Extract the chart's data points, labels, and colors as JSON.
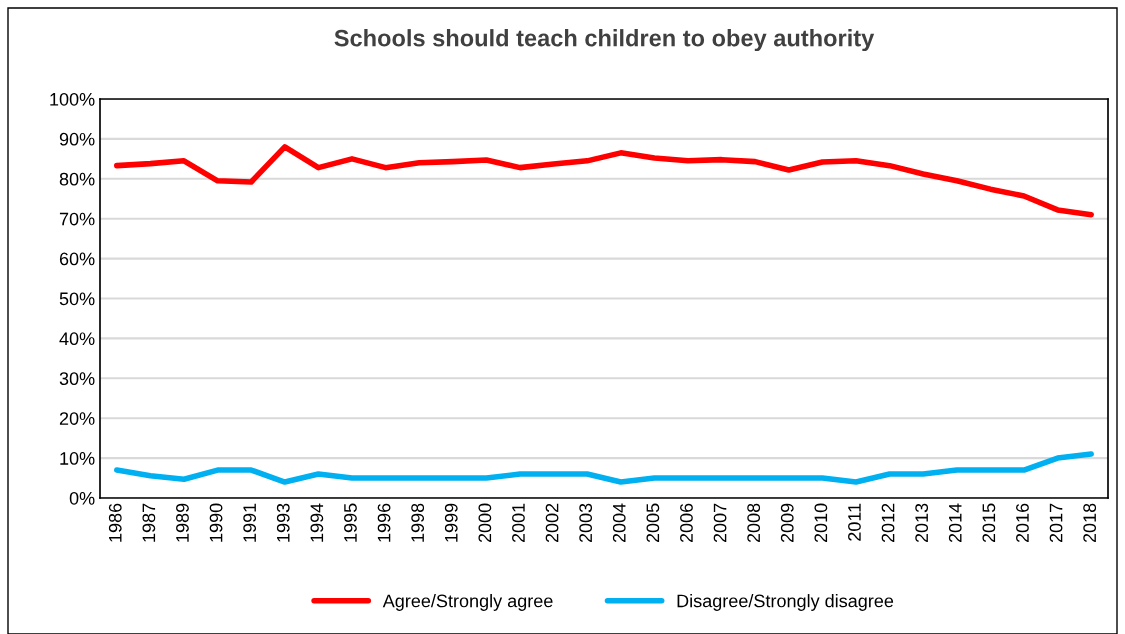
{
  "chart_data": {
    "type": "line",
    "title": "Schools should teach children to obey authority",
    "categories": [
      "1986",
      "1987",
      "1989",
      "1990",
      "1991",
      "1993",
      "1994",
      "1995",
      "1996",
      "1998",
      "1999",
      "2000",
      "2001",
      "2002",
      "2003",
      "2004",
      "2005",
      "2006",
      "2007",
      "2008",
      "2009",
      "2010",
      "2011",
      "2012",
      "2013",
      "2014",
      "2015",
      "2016",
      "2017",
      "2018"
    ],
    "series": [
      {
        "name": "Agree/Strongly agree",
        "color": "#ff0000",
        "values": [
          83.3,
          83.8,
          84.5,
          79.5,
          79.2,
          88,
          82.8,
          85,
          82.8,
          84,
          84.3,
          84.7,
          82.8,
          83.7,
          84.5,
          86.5,
          85.2,
          84.5,
          84.8,
          84.3,
          82.2,
          84.2,
          84.5,
          83.3,
          81.2,
          79.5,
          77.4,
          75.7,
          72.2,
          71
        ]
      },
      {
        "name": "Disagree/Strongly disagree",
        "color": "#00b0f0",
        "values": [
          7,
          5.6,
          4.7,
          7,
          7,
          4,
          6,
          5,
          5,
          5,
          5,
          5,
          6,
          6,
          6,
          4,
          5,
          5,
          5,
          5,
          5,
          5,
          4,
          6,
          6,
          7,
          7,
          7,
          10,
          11
        ]
      }
    ],
    "ylim": [
      0,
      100
    ],
    "yticks": [
      {
        "value": 0,
        "label": "0%"
      },
      {
        "value": 10,
        "label": "10%"
      },
      {
        "value": 20,
        "label": "20%"
      },
      {
        "value": 30,
        "label": "30%"
      },
      {
        "value": 40,
        "label": "40%"
      },
      {
        "value": 50,
        "label": "50%"
      },
      {
        "value": 60,
        "label": "60%"
      },
      {
        "value": 70,
        "label": "70%"
      },
      {
        "value": 80,
        "label": "80%"
      },
      {
        "value": 90,
        "label": "90%"
      },
      {
        "value": 100,
        "label": "100%"
      }
    ],
    "grid": "y",
    "legend": "bottom",
    "marker": "none",
    "line_style": "solid"
  }
}
